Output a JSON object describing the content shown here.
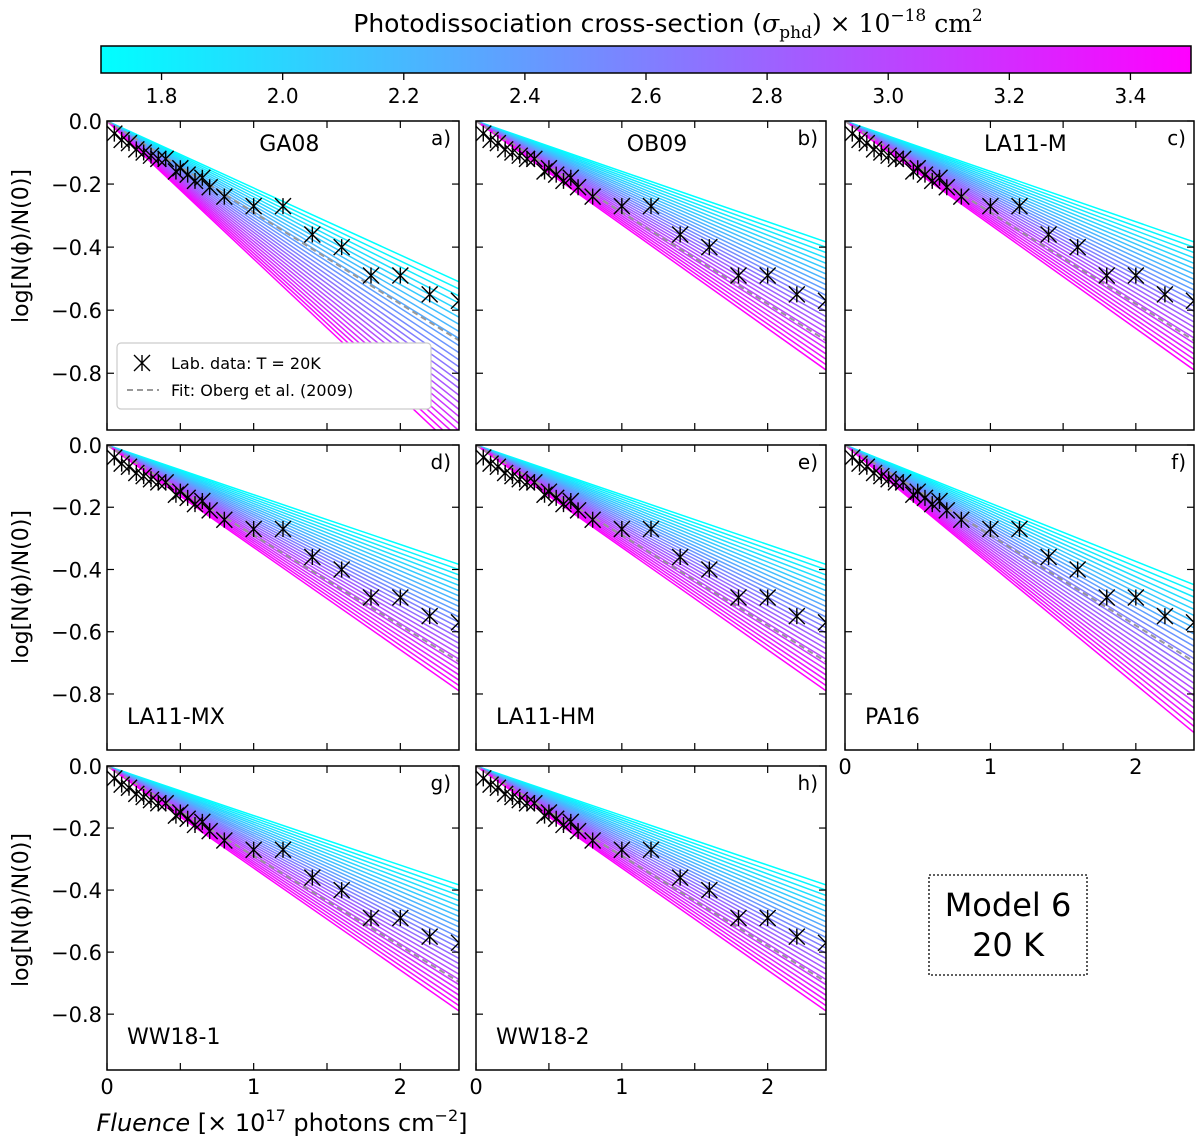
{
  "chart_data": {
    "type": "line",
    "colorbar": {
      "label": "Photodissociation cross-section (σphd) × 10−18 cm2",
      "label_parts": {
        "main": "Photodissociation cross-section (",
        "sigma": "σ",
        "sub": "phd",
        "times": ") × 10",
        "exp": "−18",
        "unit": " cm",
        "unit_exp": "2"
      },
      "min": 1.7,
      "max": 3.5,
      "ticks": [
        "1.8",
        "2.0",
        "2.2",
        "2.4",
        "2.6",
        "2.8",
        "3.0",
        "3.2",
        "3.4"
      ],
      "color_low": "#00ffff",
      "color_high": "#ff00ff"
    },
    "xlabel": {
      "italic": "Fluence",
      "rest": " [× 10",
      "exp": "17",
      "rest2": " photons cm",
      "exp2": "−2",
      "end": "]"
    },
    "ylabel": "log[N(ϕ)/N(0)]",
    "xlim": [
      0,
      2.4
    ],
    "ylim": [
      -0.98,
      0.0
    ],
    "xticks": [
      "0",
      "1",
      "2"
    ],
    "yticks": [
      "0.0",
      "−0.2",
      "−0.4",
      "−0.6",
      "−0.8"
    ],
    "sigma_lines": [
      1.7,
      1.775,
      1.85,
      1.925,
      2.0,
      2.075,
      2.15,
      2.225,
      2.3,
      2.375,
      2.45,
      2.525,
      2.6,
      2.675,
      2.75,
      2.825,
      2.9,
      2.975,
      3.05,
      3.125,
      3.2,
      3.275,
      3.35,
      3.425,
      3.5
    ],
    "fit_line": {
      "label": "Fit: Oberg et al. (2009)",
      "slope_per_unit_fluence": -0.29,
      "color": "#999999"
    },
    "lab_data": {
      "label": "Lab. data: T = 20K",
      "x": [
        0.05,
        0.1,
        0.15,
        0.2,
        0.25,
        0.3,
        0.35,
        0.4,
        0.47,
        0.5,
        0.55,
        0.6,
        0.65,
        0.7,
        0.8,
        1.0,
        1.2,
        1.4,
        1.6,
        1.8,
        2.0,
        2.2,
        2.4
      ],
      "y": [
        -0.04,
        -0.06,
        -0.07,
        -0.09,
        -0.1,
        -0.11,
        -0.12,
        -0.12,
        -0.16,
        -0.15,
        -0.17,
        -0.19,
        -0.18,
        -0.21,
        -0.24,
        -0.27,
        -0.27,
        -0.36,
        -0.4,
        -0.49,
        -0.49,
        -0.55,
        -0.57
      ]
    },
    "panels": [
      {
        "name": "GA08",
        "letter": "a)",
        "label_pos": "top-center",
        "slope_scale": 1.25,
        "show_legend": true
      },
      {
        "name": "OB09",
        "letter": "b)",
        "label_pos": "top-center",
        "slope_scale": 0.94,
        "show_legend": false
      },
      {
        "name": "LA11-M",
        "letter": "c)",
        "label_pos": "top-center",
        "slope_scale": 0.94,
        "show_legend": false
      },
      {
        "name": "LA11-MX",
        "letter": "d)",
        "label_pos": "bottom-left",
        "slope_scale": 0.94,
        "show_legend": false
      },
      {
        "name": "LA11-HM",
        "letter": "e)",
        "label_pos": "bottom-left",
        "slope_scale": 0.94,
        "show_legend": false
      },
      {
        "name": "PA16",
        "letter": "f)",
        "label_pos": "bottom-left",
        "slope_scale": 1.1,
        "show_legend": false
      },
      {
        "name": "WW18-1",
        "letter": "g)",
        "label_pos": "bottom-left",
        "slope_scale": 0.94,
        "show_legend": false
      },
      {
        "name": "WW18-2",
        "letter": "h)",
        "label_pos": "bottom-left",
        "slope_scale": 0.94,
        "show_legend": false
      }
    ],
    "model_box": {
      "line1": "Model 6",
      "line2": "20 K"
    }
  }
}
